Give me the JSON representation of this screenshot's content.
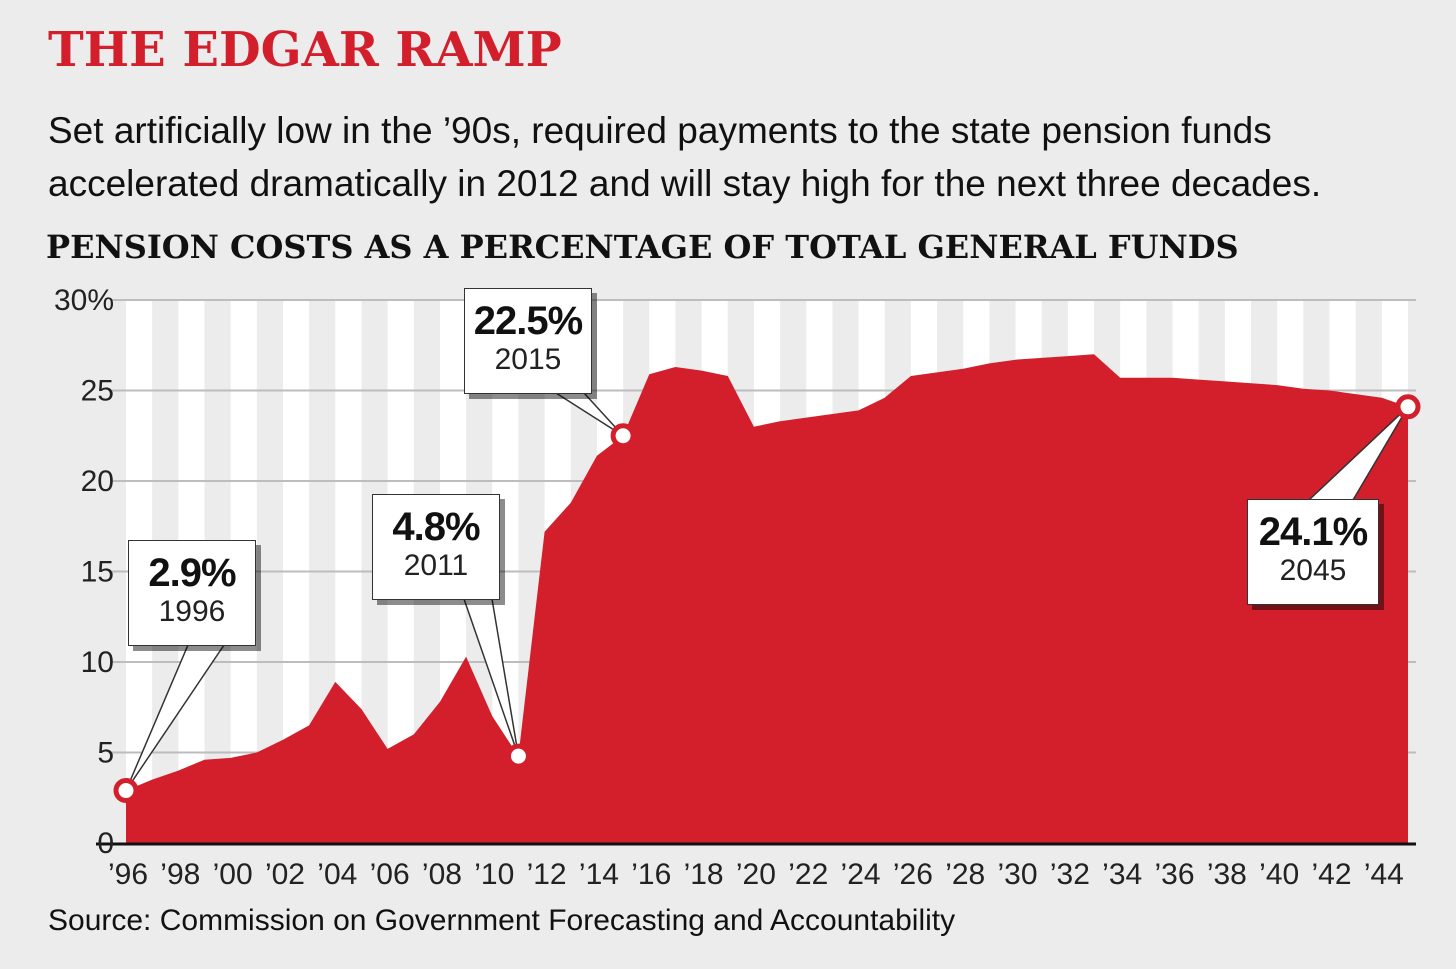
{
  "header": {
    "title": "THE EDGAR RAMP",
    "subtitle": "Set artificially low in the ’90s, required payments to the state pension funds accelerated dramatically in 2012 and will stay high for the next three decades."
  },
  "chart_data": {
    "type": "area",
    "title": "PENSION COSTS AS A PERCENTAGE OF TOTAL GENERAL FUNDS",
    "xlabel": "",
    "ylabel": "",
    "x": [
      1996,
      1997,
      1998,
      1999,
      2000,
      2001,
      2002,
      2003,
      2004,
      2005,
      2006,
      2007,
      2008,
      2009,
      2010,
      2011,
      2012,
      2013,
      2014,
      2015,
      2016,
      2017,
      2018,
      2019,
      2020,
      2021,
      2022,
      2023,
      2024,
      2025,
      2026,
      2027,
      2028,
      2029,
      2030,
      2031,
      2032,
      2033,
      2034,
      2035,
      2036,
      2037,
      2038,
      2039,
      2040,
      2041,
      2042,
      2043,
      2044,
      2045
    ],
    "values": [
      2.9,
      3.5,
      4.0,
      4.6,
      4.7,
      5.0,
      5.7,
      6.5,
      8.9,
      7.4,
      5.2,
      6.0,
      7.8,
      10.3,
      7.0,
      4.8,
      17.2,
      18.8,
      21.4,
      22.5,
      25.9,
      26.3,
      26.1,
      25.8,
      23.0,
      23.3,
      23.5,
      23.7,
      23.9,
      24.6,
      25.8,
      26.0,
      26.2,
      26.5,
      26.7,
      26.8,
      26.9,
      27.0,
      25.7,
      25.7,
      25.7,
      25.6,
      25.5,
      25.4,
      25.3,
      25.1,
      25.0,
      24.8,
      24.6,
      24.1
    ],
    "ylim": [
      0,
      30
    ],
    "xlim": [
      1996,
      2045
    ],
    "y_ticks": [
      0,
      5,
      10,
      15,
      20,
      25,
      30
    ],
    "y_tick_labels": [
      "0",
      "5",
      "10",
      "15",
      "20",
      "25",
      "30%"
    ],
    "x_ticks": [
      1996,
      1998,
      2000,
      2002,
      2004,
      2006,
      2008,
      2010,
      2012,
      2014,
      2016,
      2018,
      2020,
      2022,
      2024,
      2026,
      2028,
      2030,
      2032,
      2034,
      2036,
      2038,
      2040,
      2042,
      2044
    ],
    "x_tick_labels": [
      "’96",
      "’98",
      "’00",
      "’02",
      "’04",
      "’06",
      "’08",
      "’10",
      "’12",
      "’14",
      "’16",
      "’18",
      "’20",
      "’22",
      "’24",
      "’26",
      "’28",
      "’30",
      "’32",
      "’34",
      "’36",
      "’38",
      "’40",
      "’42",
      "’44"
    ],
    "grid": true,
    "fill_color": "#d21f2b",
    "annotations": [
      {
        "year": 1996,
        "value": 2.9,
        "label": "2.9%",
        "year_label": "1996"
      },
      {
        "year": 2011,
        "value": 4.8,
        "label": "4.8%",
        "year_label": "2011"
      },
      {
        "year": 2015,
        "value": 22.5,
        "label": "22.5%",
        "year_label": "2015"
      },
      {
        "year": 2045,
        "value": 24.1,
        "label": "24.1%",
        "year_label": "2045"
      }
    ]
  },
  "footer": {
    "source": "Source: Commission on Government Forecasting and Accountability"
  }
}
